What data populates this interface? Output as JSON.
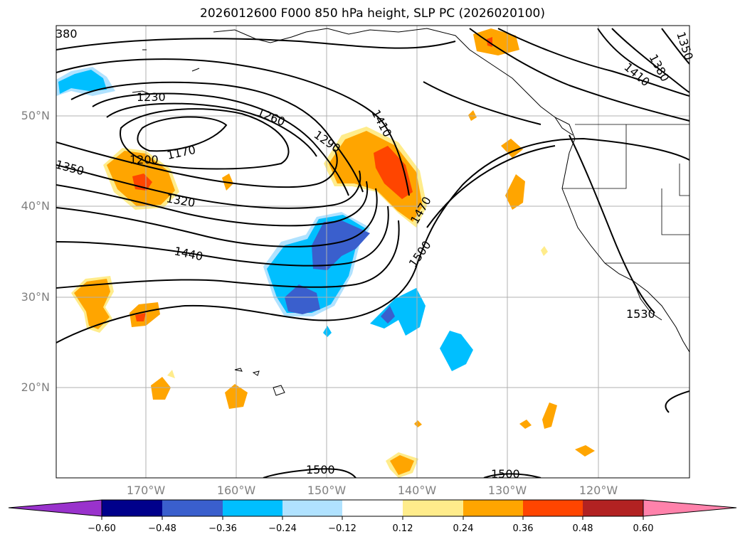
{
  "title": "2026012600 F000 850 hPa height, SLP PC (2026020100)",
  "lat_labels": [
    "50°N",
    "40°N",
    "30°N",
    "20°N"
  ],
  "lon_labels": [
    "170°W",
    "160°W",
    "150°W",
    "140°W",
    "130°W",
    "120°W"
  ],
  "contour_labels": [
    "380",
    "1230",
    "1260",
    "1290",
    "1410",
    "1410",
    "1380",
    "1350",
    "1200",
    "1170",
    "1350",
    "1320",
    "1440",
    "1470",
    "1500",
    "1530",
    "1500",
    "1500"
  ],
  "colorbar": {
    "ticks": [
      "−0.60",
      "−0.48",
      "−0.36",
      "−0.24",
      "−0.12",
      "0.12",
      "0.24",
      "0.36",
      "0.48",
      "0.60"
    ],
    "colors": [
      "#9932cc",
      "#00008b",
      "#3a5fcd",
      "#00bfff",
      "#b0e2ff",
      "#ffffff",
      "#ffec8b",
      "#ffa500",
      "#ff4500",
      "#b22222",
      "#ff82ab"
    ]
  }
}
